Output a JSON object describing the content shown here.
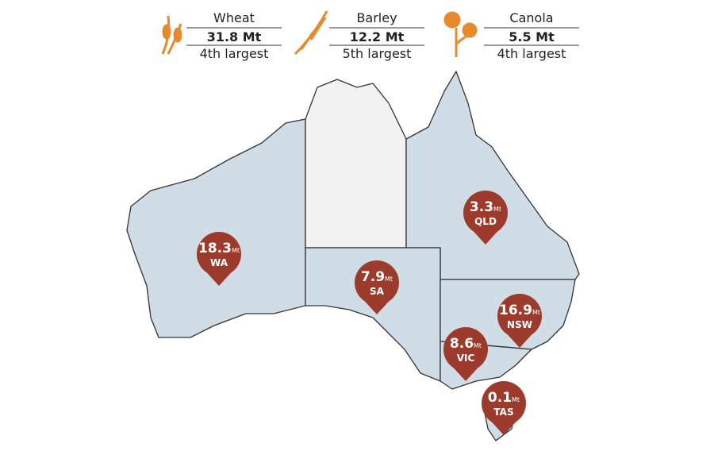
{
  "legend": [
    {
      "crop": "Wheat",
      "amount": "31.8 Mt",
      "rank": "4th largest"
    },
    {
      "crop": "Barley",
      "amount": "12.2 Mt",
      "rank": "5th largest"
    },
    {
      "crop": "Canola",
      "amount": "5.5 Mt",
      "rank": "4th largest"
    }
  ],
  "pins": [
    {
      "value": 18.3,
      "unit": "Mt",
      "state": "WA"
    },
    {
      "value": 7.9,
      "unit": "Mt",
      "state": "SA"
    },
    {
      "value": 3.3,
      "unit": "Mt",
      "state": "QLD"
    },
    {
      "value": 16.9,
      "unit": "Mt",
      "state": "NSW"
    },
    {
      "value": 8.6,
      "unit": "Mt",
      "state": "VIC"
    },
    {
      "value": 0.1,
      "unit": "Mt",
      "state": "TAS"
    }
  ]
}
